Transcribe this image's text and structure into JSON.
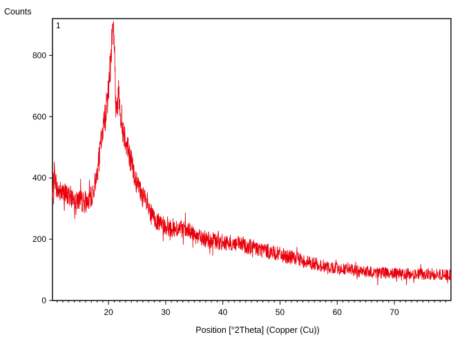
{
  "chart_data": {
    "type": "line",
    "ylabel": "Counts",
    "xlabel": "Position [°2Theta] (Copper (Cu))",
    "pattern_label": "1",
    "xlim": [
      10.2,
      79.9
    ],
    "ylim": [
      0,
      920
    ],
    "x_ticks": [
      20,
      30,
      40,
      50,
      60,
      70
    ],
    "y_ticks": [
      0,
      200,
      400,
      600,
      800
    ],
    "x_minor_step": 1,
    "grid": false,
    "series": [
      {
        "color": "#e8000b",
        "x": [
          10.2,
          10.5,
          11,
          12,
          13,
          14,
          15,
          16,
          17,
          17.5,
          18,
          18.5,
          19,
          19.5,
          20,
          20.3,
          20.6,
          20.8,
          21,
          21.2,
          21.4,
          21.6,
          21.8,
          22,
          22.2,
          22.5,
          23,
          23.5,
          24,
          25,
          26,
          27,
          28,
          29,
          30,
          32,
          34,
          36,
          38,
          40,
          42,
          44,
          46,
          48,
          50,
          52,
          54,
          56,
          58,
          60,
          62,
          64,
          66,
          68,
          70,
          72,
          74,
          76,
          78,
          79.9
        ],
        "y": [
          330,
          420,
          360,
          350,
          340,
          335,
          325,
          320,
          335,
          370,
          420,
          480,
          560,
          610,
          680,
          760,
          860,
          900,
          860,
          680,
          600,
          650,
          700,
          640,
          590,
          560,
          530,
          490,
          450,
          380,
          340,
          300,
          265,
          250,
          240,
          235,
          225,
          205,
          195,
          190,
          185,
          180,
          170,
          160,
          150,
          140,
          130,
          120,
          110,
          105,
          100,
          96,
          92,
          90,
          88,
          87,
          86,
          85,
          84,
          84
        ],
        "noise_amplitude": 28
      }
    ]
  }
}
